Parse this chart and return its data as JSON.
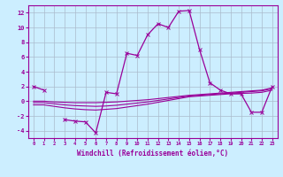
{
  "xlabel": "Windchill (Refroidissement éolien,°C)",
  "bg_color": "#cceeff",
  "grid_color": "#aabbcc",
  "line_color": "#990099",
  "x_hours": [
    0,
    1,
    2,
    3,
    4,
    5,
    6,
    7,
    8,
    9,
    10,
    11,
    12,
    13,
    14,
    15,
    16,
    17,
    18,
    19,
    20,
    21,
    22,
    23
  ],
  "main_line_y": [
    2.0,
    1.5,
    null,
    -2.5,
    -2.7,
    -2.8,
    -4.3,
    1.2,
    1.0,
    6.5,
    6.2,
    9.0,
    10.5,
    10.0,
    12.2,
    12.3,
    7.0,
    2.5,
    1.5,
    1.0,
    1.0,
    -1.5,
    -1.5,
    2.0
  ],
  "line_flat1": [
    0.0,
    0.0,
    -0.1,
    -0.15,
    -0.2,
    -0.2,
    -0.2,
    -0.15,
    -0.1,
    0.0,
    0.1,
    0.2,
    0.35,
    0.5,
    0.65,
    0.8,
    0.9,
    1.0,
    1.1,
    1.2,
    1.3,
    1.4,
    1.5,
    1.8
  ],
  "line_flat2": [
    -0.2,
    -0.2,
    -0.35,
    -0.5,
    -0.6,
    -0.65,
    -0.7,
    -0.65,
    -0.55,
    -0.4,
    -0.25,
    -0.1,
    0.1,
    0.3,
    0.5,
    0.7,
    0.8,
    0.9,
    1.0,
    1.1,
    1.2,
    1.3,
    1.4,
    1.7
  ],
  "line_flat3": [
    -0.5,
    -0.5,
    -0.7,
    -0.9,
    -1.05,
    -1.15,
    -1.2,
    -1.1,
    -1.0,
    -0.8,
    -0.6,
    -0.4,
    -0.15,
    0.1,
    0.35,
    0.6,
    0.7,
    0.8,
    0.9,
    1.0,
    1.05,
    1.1,
    1.2,
    1.5
  ],
  "ylim": [
    -5,
    13
  ],
  "xlim": [
    -0.5,
    23.5
  ],
  "yticks": [
    -4,
    -2,
    0,
    2,
    4,
    6,
    8,
    10,
    12
  ]
}
